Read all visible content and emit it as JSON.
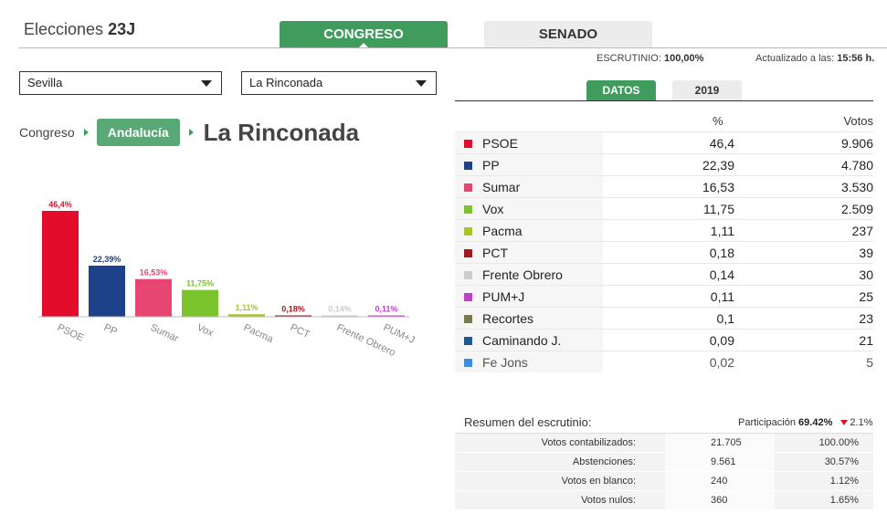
{
  "header": {
    "title_prefix": "Elecciones",
    "title_bold": "23J",
    "tabs": {
      "congreso": "CONGRESO",
      "senado": "SENADO"
    }
  },
  "filters": {
    "province": "Sevilla",
    "municipality": "La Rinconada"
  },
  "status": {
    "escrutinio_label": "ESCRUTINIO:",
    "escrutinio_value": "100,00%",
    "updated_label": "Actualizado a las:",
    "updated_value": "15:56 h."
  },
  "subtabs": {
    "datos": "DATOS",
    "prev": "2019"
  },
  "breadcrumb": {
    "root": "Congreso",
    "region": "Andalucía",
    "current": "La Rinconada"
  },
  "chart_data": {
    "type": "bar",
    "categories": [
      "PSOE",
      "PP",
      "Sumar",
      "Vox",
      "Pacma",
      "PCT",
      "Frente Obrero",
      "PUM+J"
    ],
    "values": [
      46.4,
      22.39,
      16.53,
      11.75,
      1.11,
      0.18,
      0.14,
      0.11
    ],
    "data_labels": [
      "46,4%",
      "22,39%",
      "16,53%",
      "11,75%",
      "1,11%",
      "0,18%",
      "0,14%",
      "0,11%"
    ],
    "colors": [
      "#e30d2b",
      "#1e428a",
      "#e84672",
      "#7bc42e",
      "#a8c62b",
      "#a11a1e",
      "#cccccc",
      "#c03fcc"
    ],
    "ylim": [
      0,
      46.4
    ]
  },
  "results": {
    "header_pct": "%",
    "header_votes": "Votos",
    "rows": [
      {
        "name": "PSOE",
        "pct": "46,4",
        "votes": "9.906",
        "color": "#e30d2b"
      },
      {
        "name": "PP",
        "pct": "22,39",
        "votes": "4.780",
        "color": "#1e428a"
      },
      {
        "name": "Sumar",
        "pct": "16,53",
        "votes": "3.530",
        "color": "#e84672"
      },
      {
        "name": "Vox",
        "pct": "11,75",
        "votes": "2.509",
        "color": "#7bc42e"
      },
      {
        "name": "Pacma",
        "pct": "1,11",
        "votes": "237",
        "color": "#a8c62b"
      },
      {
        "name": "PCT",
        "pct": "0,18",
        "votes": "39",
        "color": "#a11a1e"
      },
      {
        "name": "Frente Obrero",
        "pct": "0,14",
        "votes": "30",
        "color": "#cccccc"
      },
      {
        "name": "PUM+J",
        "pct": "0,11",
        "votes": "25",
        "color": "#c03fcc"
      },
      {
        "name": "Recortes",
        "pct": "0,1",
        "votes": "23",
        "color": "#7a7a4a"
      },
      {
        "name": "Caminando J.",
        "pct": "0,09",
        "votes": "21",
        "color": "#1f5a8f"
      },
      {
        "name": "Fe Jons",
        "pct": "0,02",
        "votes": "5",
        "color": "#3b8ee0"
      }
    ]
  },
  "summary": {
    "title": "Resumen del escrutinio:",
    "participation_label": "Participación",
    "participation_value": "69.42%",
    "participation_change": "2.1%",
    "rows": [
      {
        "label": "Votos contabilizados:",
        "count": "21.705",
        "pct": "100.00%"
      },
      {
        "label": "Abstenciones:",
        "count": "9.561",
        "pct": "30.57%"
      },
      {
        "label": "Votos en blanco:",
        "count": "240",
        "pct": "1.12%"
      },
      {
        "label": "Votos nulos:",
        "count": "360",
        "pct": "1.65%"
      }
    ]
  }
}
